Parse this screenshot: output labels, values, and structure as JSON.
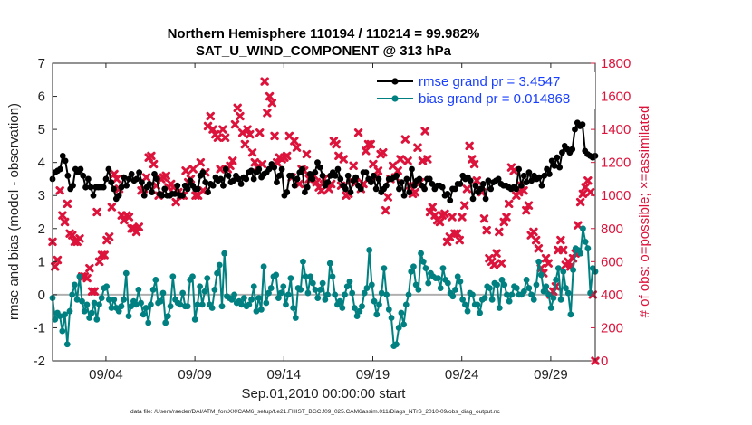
{
  "chart_data": {
    "type": "line",
    "title_line1": "Northern Hemisphere 110194 / 110214 = 99.982%",
    "title_line2": "SAT_U_WIND_COMPONENT @ 313 hPa",
    "xlabel": "Sep.01,2010 00:00:00 start",
    "ylabel_left": "rmse and bias (model - observation)",
    "ylabel_right": "# of obs: o=possible; ×=assimilated",
    "footnote": "data file: /Users/raeder/DAI/ATM_forcXX/CAM6_setup/f.e21.FHIST_BGC.f09_025.CAM6assim.011/Diags_NTrS_2010-09/obs_diag_output.nc",
    "xlim": [
      0,
      30.5
    ],
    "ylim_left": [
      -2,
      7
    ],
    "ylim_right": [
      0,
      1800
    ],
    "left_ticks": [
      "-2",
      "-1",
      "0",
      "1",
      "2",
      "3",
      "4",
      "5",
      "6",
      "7"
    ],
    "right_ticks": [
      "0",
      "200",
      "400",
      "600",
      "800",
      "1000",
      "1200",
      "1400",
      "1600",
      "1800"
    ],
    "x_ticks": [
      {
        "pos": 3,
        "label": "09/04"
      },
      {
        "pos": 8,
        "label": "09/09"
      },
      {
        "pos": 13,
        "label": "09/14"
      },
      {
        "pos": 18,
        "label": "09/19"
      },
      {
        "pos": 23,
        "label": "09/24"
      },
      {
        "pos": 28,
        "label": "09/29"
      }
    ],
    "legend": [
      {
        "label": "rmse grand pr = 3.4547",
        "color": "#000000"
      },
      {
        "label": "bias grand pr = 0.014868",
        "color": "#008080"
      }
    ],
    "colors": {
      "rmse": "#000000",
      "bias": "#008080",
      "obs": "#dc143c",
      "zero_line": "#b0b0b0"
    },
    "series": [
      {
        "name": "rmse",
        "values": [
          3.5,
          3.7,
          3.75,
          3.8,
          4.2,
          4.05,
          3.6,
          3.2,
          3.3,
          3.8,
          3.7,
          3.8,
          3.6,
          3.25,
          3.5,
          3.25,
          3.0,
          3.25,
          3.25,
          3.25,
          3.25,
          3.5,
          3.8,
          3.4,
          3.2,
          2.9,
          3.0,
          3.25,
          3.55,
          3.3,
          3.5,
          3.65,
          3.45,
          3.5,
          3.7,
          3.4,
          3.0,
          3.25,
          3.35,
          3.1,
          3.65,
          3.5,
          3.05,
          3.0,
          3.2,
          3.0,
          3.0,
          3.05,
          3.05,
          3.3,
          3.0,
          3.0,
          3.3,
          3.2,
          3.45,
          3.3,
          3.2,
          3.2,
          3.6,
          3.7,
          3.4,
          3.1,
          3.35,
          3.3,
          3.55,
          3.45,
          3.5,
          3.3,
          3.8,
          3.6,
          3.4,
          3.45,
          3.6,
          3.5,
          3.35,
          3.55,
          3.5,
          3.7,
          3.75,
          3.5,
          3.7,
          3.8,
          3.55,
          3.65,
          3.7,
          3.8,
          3.95,
          3.85,
          3.4,
          3.6,
          3.8,
          3.0,
          3.1,
          3.6,
          3.6,
          3.3,
          3.5,
          3.7,
          3.8,
          3.1,
          3.25,
          3.65,
          3.5,
          3.7,
          4.0,
          3.85,
          3.6,
          3.3,
          3.4,
          3.6,
          3.7,
          3.6,
          3.8,
          3.5,
          3.3,
          3.2,
          3.6,
          3.1,
          3.45,
          3.55,
          3.3,
          3.2,
          3.7,
          3.7,
          3.5,
          3.4,
          3.6,
          3.2,
          3.5,
          3.1,
          3.2,
          3.3,
          3.5,
          3.5,
          3.55,
          3.6,
          3.2,
          3.4,
          3.0,
          3.5,
          3.1,
          3.8,
          3.3,
          3.45,
          3.5,
          3.3,
          3.2,
          3.5,
          3.5,
          3.35,
          3.2,
          3.3,
          3.3,
          3.25,
          3.0,
          3.05,
          2.85,
          3.2,
          3.2,
          3.35,
          3.35,
          3.6,
          3.5,
          3.55,
          3.45,
          2.9,
          3.3,
          3.1,
          3.2,
          3.35,
          2.9,
          3.45,
          3.2,
          3.4,
          3.45,
          3.5,
          3.35,
          3.3,
          3.3,
          3.25,
          3.2,
          3.25,
          3.2,
          3.8,
          3.3,
          3.6,
          3.4,
          3.7,
          3.45,
          3.6,
          3.5,
          3.55,
          3.3,
          3.6,
          3.8,
          3.65,
          4.05,
          3.9,
          4.15,
          3.85,
          4.3,
          4.5,
          4.4,
          4.3,
          4.4,
          5.0,
          5.2,
          5.1,
          5.15,
          4.35,
          4.25,
          4.2,
          4.15,
          4.2
        ]
      },
      {
        "name": "bias",
        "values": [
          -0.1,
          -0.75,
          -0.55,
          -0.65,
          -1.1,
          -0.6,
          -1.5,
          -0.5,
          0.0,
          0.3,
          -0.15,
          0.55,
          -0.2,
          -0.5,
          -0.3,
          -0.7,
          -0.55,
          -0.25,
          -0.75,
          -0.3,
          -0.1,
          0.2,
          0.25,
          -0.15,
          -0.4,
          -0.15,
          -0.4,
          -0.5,
          -0.35,
          -0.15,
          0.65,
          -0.65,
          -0.35,
          -0.2,
          -0.3,
          0.15,
          -0.25,
          -0.6,
          -0.4,
          -0.85,
          -0.3,
          0.15,
          0.45,
          -0.25,
          -0.2,
          0.05,
          -0.85,
          -0.65,
          -0.35,
          0.55,
          -0.15,
          -0.25,
          -0.3,
          0.05,
          -0.35,
          -0.35,
          0.45,
          0.55,
          -0.75,
          -0.3,
          0.25,
          -0.3,
          0.1,
          0.5,
          -0.3,
          -0.4,
          0.15,
          0.65,
          0.9,
          -0.35,
          1.25,
          -0.05,
          -0.1,
          -0.15,
          0.0,
          -0.25,
          -0.2,
          -0.3,
          -0.1,
          -0.35,
          -0.3,
          -0.15,
          0.25,
          -0.5,
          -0.1,
          -0.45,
          0.85,
          -0.25,
          0.05,
          0.2,
          0.55,
          0.6,
          -0.1,
          0.05,
          0.25,
          -0.3,
          0.0,
          0.5,
          -0.4,
          -0.7,
          0.2,
          0.15,
          1.0,
          0.55,
          0.05,
          0.55,
          0.35,
          0.15,
          -0.1,
          0.15,
          0.35,
          -0.15,
          0.0,
          0.95,
          0.55,
          0.0,
          -0.3,
          -0.2,
          -0.4,
          0.0,
          0.25,
          0.4,
          0.05,
          -0.4,
          -0.65,
          -0.5,
          -0.35,
          0.05,
          0.2,
          1.35,
          0.3,
          -0.2,
          -0.6,
          -0.3,
          0.05,
          0.8,
          0.0,
          -0.45,
          -0.7,
          -1.55,
          -1.5,
          -1.0,
          -0.55,
          -0.9,
          -0.3,
          0.0,
          0.7,
          0.85,
          0.3,
          0.15,
          1.25,
          1.0,
          0.8,
          0.35,
          0.65,
          0.55,
          0.5,
          0.5,
          0.2,
          0.8,
          0.45,
          0.35,
          0.05,
          -0.05,
          0.15,
          0.55,
          0.4,
          -0.15,
          -0.3,
          -0.5,
          0.05,
          0.0,
          -0.3,
          -0.3,
          -0.55,
          -0.15,
          -0.1,
          0.25,
          0.2,
          -0.15,
          0.35,
          0.3,
          -0.4,
          0.45,
          0.3,
          0.0,
          -0.2,
          0.0,
          0.25,
          0.2,
          0.0,
          0.0,
          0.1,
          0.45,
          0.2,
          0.0,
          -0.15,
          0.3,
          1.0,
          0.6,
          0.1,
          0.25,
          0.0,
          -0.4,
          -0.1,
          0.45,
          0.8,
          -0.15,
          0.7,
          0.2,
          0.05,
          -0.6,
          0.75,
          1.4,
          1.35,
          1.25,
          2.0,
          1.6,
          1.4,
          0.05,
          0.8,
          0.7
        ]
      },
      {
        "name": "obs_assimilated",
        "values": [
          720,
          570,
          610,
          1030,
          880,
          840,
          950,
          770,
          760,
          720,
          720,
          740,
          510,
          510,
          500,
          560,
          420,
          420,
          900,
          600,
          640,
          640,
          730,
          750,
          930,
          1130,
          1100,
          1040,
          880,
          850,
          880,
          870,
          800,
          800,
          780,
          810,
          1030,
          1040,
          1110,
          1230,
          1240,
          1190,
          1060,
          1000,
          1100,
          1110,
          1120,
          1050,
          1070,
          1050,
          960,
          1020,
          1000,
          1000,
          1150,
          1080,
          1100,
          1160,
          1000,
          1000,
          1200,
          1030,
          1140,
          1420,
          1480,
          1400,
          1370,
          1350,
          1160,
          1400,
          1350,
          1160,
          1180,
          1210,
          1430,
          1530,
          1480,
          1380,
          1310,
          1400,
          1370,
          1260,
          1200,
          1170,
          1380,
          1190,
          1690,
          1500,
          1600,
          1560,
          1360,
          1200,
          1230,
          1220,
          1230,
          1240,
          1360,
          1110,
          1330,
          1290,
          1070,
          1160,
          1150,
          1250,
          1100,
          1100,
          1120,
          1080,
          1050,
          1030,
          1100,
          1060,
          1040,
          1070,
          1330,
          1310,
          1240,
          1060,
          1220,
          1000,
          1010,
          1090,
          1180,
          1080,
          1380,
          1040,
          1070,
          1270,
          1310,
          1310,
          1190,
          1110,
          1150,
          1250,
          1260,
          910,
          990,
          1100,
          1180,
          1110,
          1150,
          1220,
          1590,
          1340,
          1210,
          1060,
          1010,
          1020,
          1290,
          1080,
          1210,
          1390,
          1220,
          900,
          930,
          880,
          850,
          840,
          880,
          890,
          720,
          750,
          870,
          770,
          770,
          730,
          870,
          940,
          1040,
          1300,
          1220,
          1190,
          1090,
          1040,
          1020,
          860,
          790,
          620,
          600,
          580,
          650,
          780,
          590,
          840,
          870,
          950,
          1170,
          1150,
          1000,
          1020,
          1060,
          1030,
          910,
          940,
          760,
          780,
          730,
          680,
          560,
          530,
          620,
          590,
          400,
          420,
          450,
          670,
          730,
          670,
          580,
          600,
          570,
          620,
          650,
          820,
          960,
          1010,
          1050,
          1090,
          1020,
          400,
          0
        ]
      }
    ]
  }
}
